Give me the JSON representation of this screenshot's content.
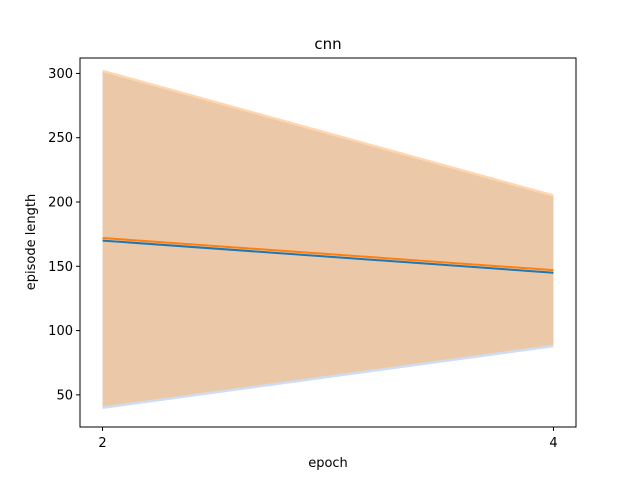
{
  "chart_data": {
    "type": "line",
    "title": "cnn",
    "xlabel": "epoch",
    "ylabel": "episode length",
    "x": [
      2,
      4
    ],
    "xlim": [
      1.9,
      4.1
    ],
    "ylim": [
      25,
      312
    ],
    "xticks": [
      2,
      4
    ],
    "yticks": [
      50,
      100,
      150,
      200,
      250,
      300
    ],
    "grid": false,
    "series": [
      {
        "color": "#1f77b4",
        "band_color": "#aec7e8",
        "mean": [
          170,
          145
        ],
        "upper": [
          301,
          204
        ],
        "lower": [
          39,
          87
        ]
      },
      {
        "color": "#ff7f0e",
        "band_color": "#ffbb78",
        "mean": [
          172,
          147
        ],
        "upper": [
          303,
          206
        ],
        "lower": [
          41,
          89
        ]
      }
    ]
  }
}
